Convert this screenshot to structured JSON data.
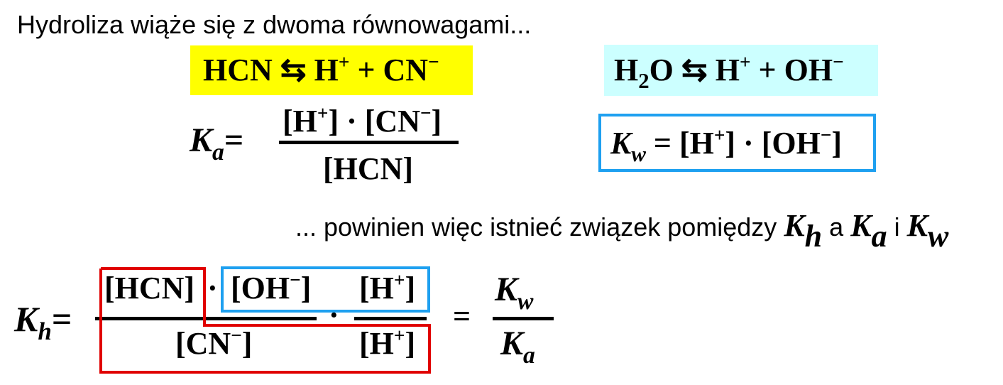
{
  "intro": "Hydroliza wiąże się z dwoma równowagami...",
  "equilibrium1": {
    "lhs": "HCN",
    "arrow": "⇆",
    "p1": "H",
    "p1_charge": "+",
    "plus": "+",
    "p2": "CN",
    "p2_charge": "−",
    "background": "#ffff00"
  },
  "equilibrium2": {
    "lhs_a": "H",
    "lhs_sub": "2",
    "lhs_b": "O",
    "arrow": "⇆",
    "p1": "H",
    "p1_charge": "+",
    "plus": "+",
    "p2": "OH",
    "p2_charge": "−",
    "background": "#ccffff"
  },
  "ka": {
    "symbol": "K",
    "sub": "a",
    "equals": "=",
    "num_h": "[H",
    "num_h_charge": "+",
    "num_h_close": "] · [CN",
    "num_cn_charge": "−",
    "num_close": "]",
    "den": "[HCN]"
  },
  "kw": {
    "symbol": "K",
    "sub": "w",
    "eq_open": " = [H",
    "h_charge": "+",
    "mid": "] · [OH",
    "oh_charge": "−",
    "close": "]",
    "border_color": "#1ea0f0"
  },
  "relation": {
    "text": "... powinien więc istnieć związek pomiędzy",
    "kh": "K",
    "kh_sub": "h",
    "a": "a",
    "ka": "K",
    "ka_sub": "a",
    "i": "i",
    "kw": "K",
    "kw_sub": "w"
  },
  "kh": {
    "symbol": "K",
    "sub": "h",
    "equals": "=",
    "num_hcn": "[HCN]",
    "dot": "·",
    "num_oh_open": "[OH",
    "num_oh_charge": "−",
    "num_oh_close": "]",
    "num_h_open": "[H",
    "num_h_charge": "+",
    "num_h_close": "]",
    "den_cn_open": "[CN",
    "den_cn_charge": "−",
    "den_cn_close": "]",
    "den_h_open": "[H",
    "den_h_charge": "+",
    "den_h_close": "]",
    "result_equals": "=",
    "result_num": "K",
    "result_num_sub": "w",
    "result_den": "K",
    "result_den_sub": "a",
    "red_color": "#e00000",
    "blue_color": "#1ea0f0"
  }
}
